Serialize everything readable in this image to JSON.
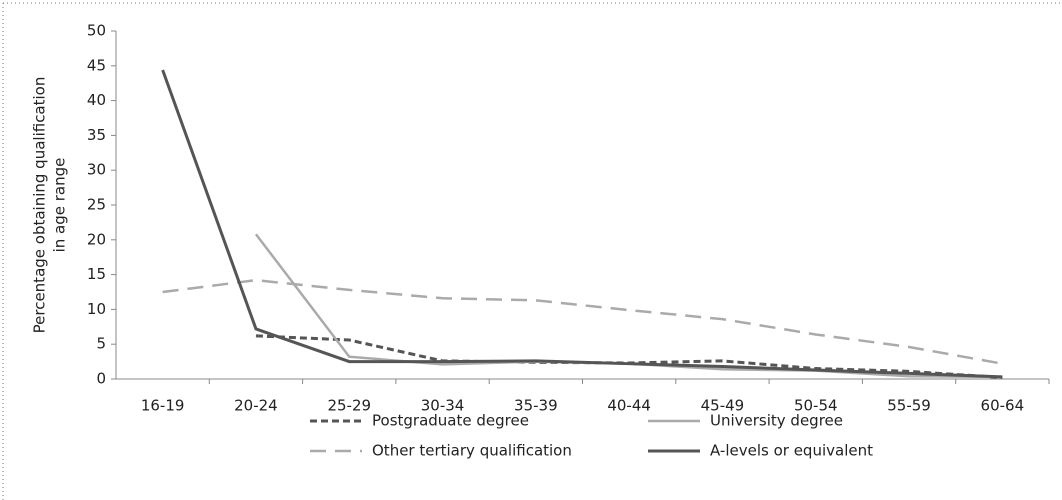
{
  "chart_data": {
    "type": "line",
    "ylabel_lines": [
      "Percentage obtaining qualification",
      "in age range"
    ],
    "categories": [
      "16-19",
      "20-24",
      "25-29",
      "30-34",
      "35-39",
      "40-44",
      "45-49",
      "50-54",
      "55-59",
      "60-64"
    ],
    "series": [
      {
        "name": "Postgraduate degree",
        "color": "#555555",
        "line_style": "short-dash",
        "values": [
          null,
          6.2,
          5.6,
          2.6,
          2.4,
          2.3,
          2.6,
          1.5,
          1.1,
          0.2
        ]
      },
      {
        "name": "University degree",
        "color": "#aaaaaa",
        "line_style": "solid",
        "values": [
          null,
          20.8,
          3.2,
          2.1,
          2.5,
          2.2,
          1.4,
          1.2,
          0.4,
          0.3
        ]
      },
      {
        "name": "Other tertiary qualification",
        "color": "#aaaaaa",
        "line_style": "long-dash",
        "values": [
          12.5,
          14.2,
          12.8,
          11.6,
          11.3,
          9.9,
          8.6,
          6.4,
          4.6,
          2.2
        ]
      },
      {
        "name": "A-levels or equivalent",
        "color": "#555555",
        "line_style": "solid",
        "values": [
          44.4,
          7.2,
          2.5,
          2.5,
          2.6,
          2.2,
          1.8,
          1.3,
          0.8,
          0.3
        ]
      }
    ],
    "ylim": [
      0,
      50
    ],
    "yticks": [
      0,
      5,
      10,
      15,
      20,
      25,
      30,
      35,
      40,
      45,
      50
    ],
    "grid": false
  }
}
